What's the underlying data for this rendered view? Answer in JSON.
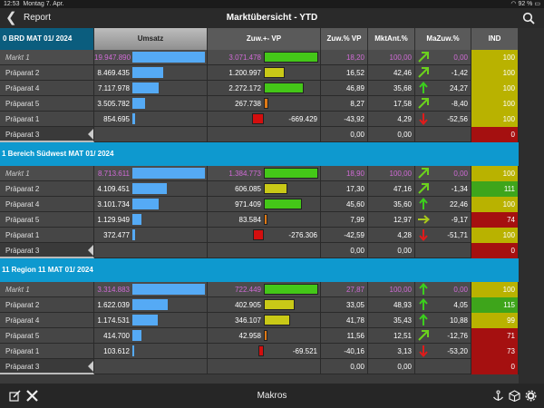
{
  "status": {
    "time": "12:53",
    "date": "Montag 7. Apr.",
    "battery": "92 %"
  },
  "nav": {
    "back_label": "Report",
    "title": "Marktübersicht - YTD"
  },
  "columns": [
    "Umsatz",
    "Zuw.+- VP",
    "Zuw.% VP",
    "MktAnt.%",
    "MaZuw.%",
    "IND"
  ],
  "bottom": {
    "title": "Makros"
  },
  "colors": {
    "section": "#0e99cf",
    "umsatz_bar": "#55aaf5",
    "zuw_bar_pos": "#44c718",
    "zuw_bar_mid": "#c9c917",
    "zuw_bar_neg": "#d40e0e",
    "ind_yellow": "#b9b200",
    "ind_green": "#3ea51b",
    "ind_red": "#a51010"
  },
  "sections": [
    {
      "title": "0 BRD MAT 01/ 2024",
      "rows": [
        {
          "label": "Markt 1",
          "markt": true,
          "umsatz": "19.947.890",
          "u": 100,
          "zuw": "3.071.478",
          "zw": 100,
          "zc": "pos",
          "zp": "18,20",
          "ma": "100,00",
          "maz": "0,00",
          "arrow": "ne",
          "ind": "100",
          "ic": "yellow"
        },
        {
          "label": "Präparat 2",
          "umsatz": "8.469.435",
          "u": 42,
          "zuw": "1.200.997",
          "zw": 39,
          "zc": "mid",
          "zp": "16,52",
          "ma": "42,46",
          "maz": "-1,42",
          "arrow": "ne",
          "ind": "100",
          "ic": "yellow"
        },
        {
          "label": "Präparat 4",
          "umsatz": "7.117.978",
          "u": 36,
          "zuw": "2.272.172",
          "zw": 74,
          "zc": "pos",
          "zp": "46,89",
          "ma": "35,68",
          "maz": "24,27",
          "arrow": "up",
          "ind": "100",
          "ic": "yellow"
        },
        {
          "label": "Präparat 5",
          "umsatz": "3.505.782",
          "u": 18,
          "zuw": "267.738",
          "zw": 9,
          "zc": "orange",
          "zp": "8,27",
          "ma": "17,58",
          "maz": "-8,40",
          "arrow": "ne",
          "ind": "100",
          "ic": "yellow"
        },
        {
          "label": "Präparat 1",
          "umsatz": "854.695",
          "u": 4,
          "zuw": "-669.429",
          "zw": 22,
          "zc": "neg",
          "zp": "-43,92",
          "ma": "4,29",
          "maz": "-52,56",
          "arrow": "down",
          "ind": "100",
          "ic": "yellow"
        },
        {
          "label": "Präparat 3",
          "last": true,
          "umsatz": "",
          "u": 0,
          "zuw": "",
          "zw": 0,
          "zc": "",
          "zp": "0,00",
          "ma": "0,00",
          "maz": "",
          "arrow": "",
          "ind": "0",
          "ic": "red"
        }
      ]
    },
    {
      "title": "1 Bereich Südwest MAT 01/ 2024",
      "rows": [
        {
          "label": "Markt 1",
          "markt": true,
          "umsatz": "8.713.611",
          "u": 100,
          "zuw": "1.384.773",
          "zw": 100,
          "zc": "pos",
          "zp": "18,90",
          "ma": "100,00",
          "maz": "0,00",
          "arrow": "ne",
          "ind": "100",
          "ic": "yellow"
        },
        {
          "label": "Präparat 2",
          "umsatz": "4.109.451",
          "u": 47,
          "zuw": "606.085",
          "zw": 44,
          "zc": "mid",
          "zp": "17,30",
          "ma": "47,16",
          "maz": "-1,34",
          "arrow": "ne",
          "ind": "111",
          "ic": "green"
        },
        {
          "label": "Präparat 4",
          "umsatz": "3.101.734",
          "u": 36,
          "zuw": "971.409",
          "zw": 70,
          "zc": "pos",
          "zp": "45,60",
          "ma": "35,60",
          "maz": "22,46",
          "arrow": "up",
          "ind": "100",
          "ic": "yellow"
        },
        {
          "label": "Präparat 5",
          "umsatz": "1.129.949",
          "u": 13,
          "zuw": "83.584",
          "zw": 6,
          "zc": "orange",
          "zp": "7,99",
          "ma": "12,97",
          "maz": "-9,17",
          "arrow": "right",
          "ind": "74",
          "ic": "red"
        },
        {
          "label": "Präparat 1",
          "umsatz": "372.477",
          "u": 4,
          "zuw": "-276.306",
          "zw": 20,
          "zc": "neg",
          "zp": "-42,59",
          "ma": "4,28",
          "maz": "-51,71",
          "arrow": "down",
          "ind": "100",
          "ic": "yellow"
        },
        {
          "label": "Präparat 3",
          "last": true,
          "umsatz": "",
          "u": 0,
          "zuw": "",
          "zw": 0,
          "zc": "",
          "zp": "0,00",
          "ma": "0,00",
          "maz": "",
          "arrow": "",
          "ind": "0",
          "ic": "red"
        }
      ]
    },
    {
      "title": "11 Region 11 MAT 01/ 2024",
      "rows": [
        {
          "label": "Markt 1",
          "markt": true,
          "umsatz": "3.314.883",
          "u": 100,
          "zuw": "722.449",
          "zw": 100,
          "zc": "pos",
          "zp": "27,87",
          "ma": "100,00",
          "maz": "0,00",
          "arrow": "up",
          "ind": "100",
          "ic": "yellow"
        },
        {
          "label": "Präparat 2",
          "umsatz": "1.622.039",
          "u": 49,
          "zuw": "402.905",
          "zw": 56,
          "zc": "mid",
          "zp": "33,05",
          "ma": "48,93",
          "maz": "4,05",
          "arrow": "up",
          "ind": "115",
          "ic": "green"
        },
        {
          "label": "Präparat 4",
          "umsatz": "1.174.531",
          "u": 35,
          "zuw": "346.107",
          "zw": 48,
          "zc": "mid",
          "zp": "41,78",
          "ma": "35,43",
          "maz": "10,88",
          "arrow": "up",
          "ind": "99",
          "ic": "yellow"
        },
        {
          "label": "Präparat 5",
          "umsatz": "414.700",
          "u": 13,
          "zuw": "42.958",
          "zw": 6,
          "zc": "orange",
          "zp": "11,56",
          "ma": "12,51",
          "maz": "-12,76",
          "arrow": "ne",
          "ind": "71",
          "ic": "red"
        },
        {
          "label": "Präparat 1",
          "umsatz": "103.612",
          "u": 3,
          "zuw": "-69.521",
          "zw": 10,
          "zc": "neg",
          "zp": "-40,16",
          "ma": "3,13",
          "maz": "-53,20",
          "arrow": "down",
          "ind": "73",
          "ic": "red"
        },
        {
          "label": "Präparat 3",
          "last": true,
          "umsatz": "",
          "u": 0,
          "zuw": "",
          "zw": 0,
          "zc": "",
          "zp": "0,00",
          "ma": "0,00",
          "maz": "",
          "arrow": "",
          "ind": "0",
          "ic": "red"
        }
      ]
    }
  ]
}
